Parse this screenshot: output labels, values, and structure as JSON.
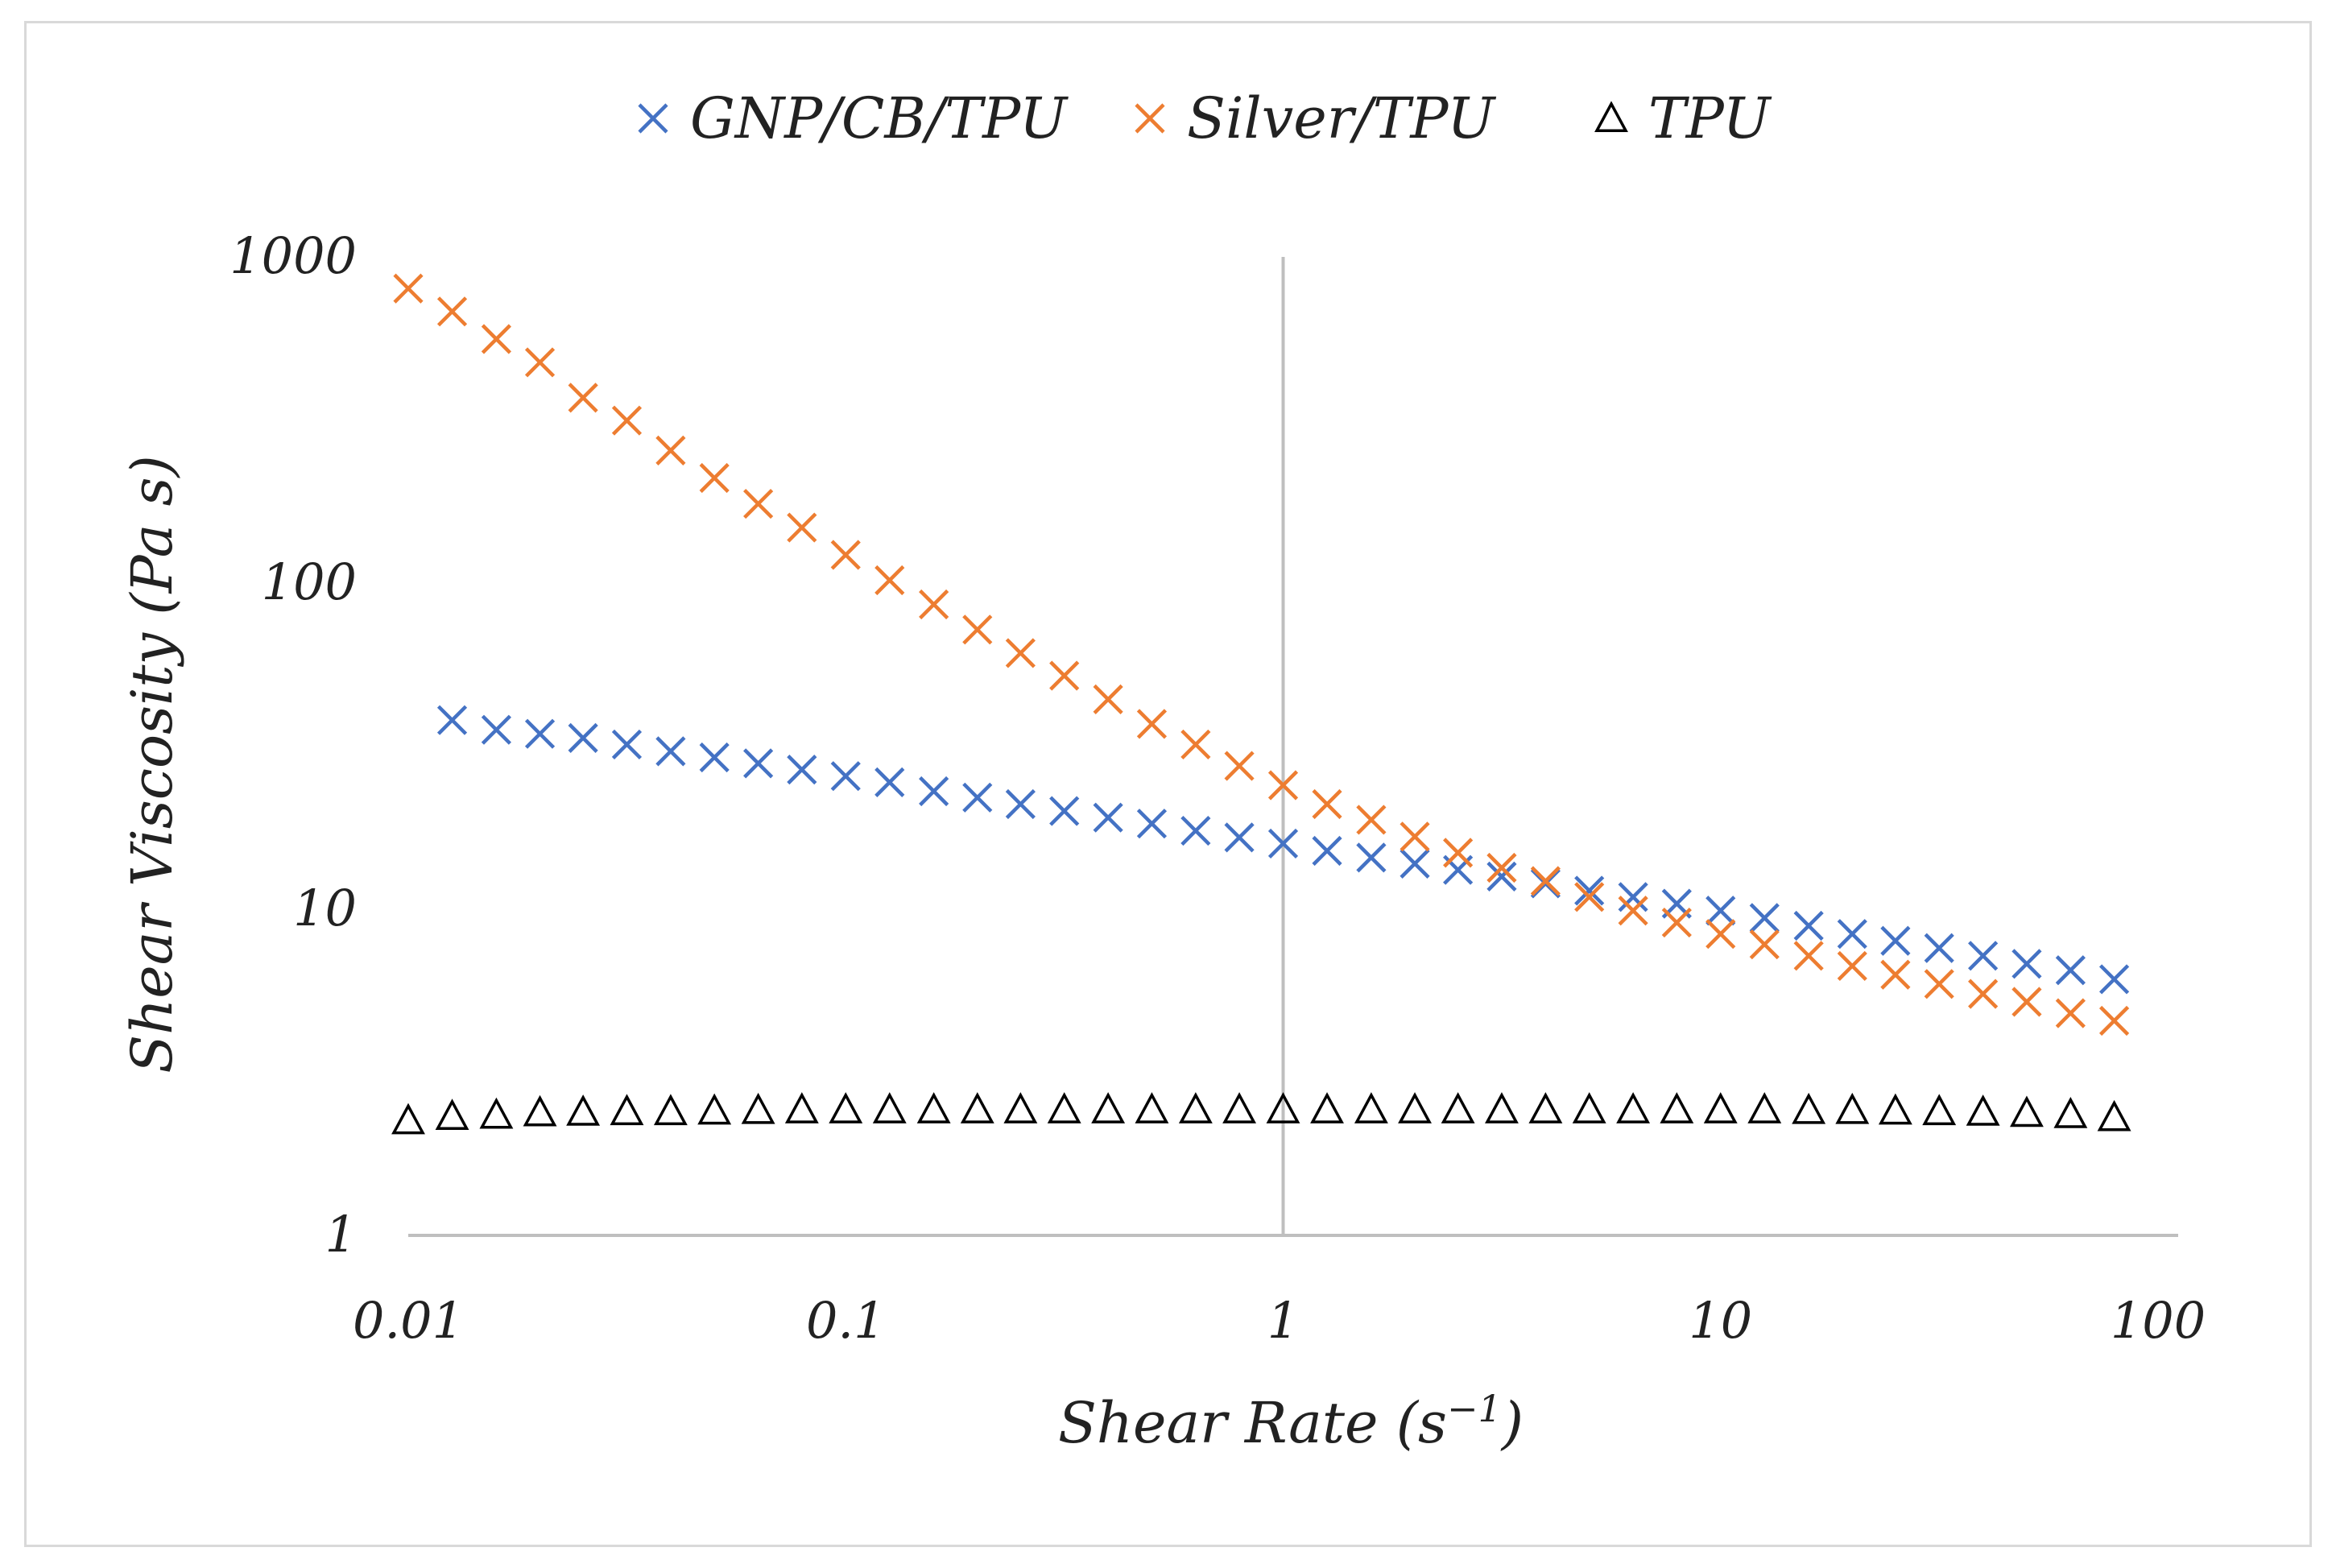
{
  "chart_data": {
    "type": "scatter",
    "title": "",
    "xlabel": "Shear Rate (s",
    "xlabel_sup": "−1",
    "xlabel_close": ")",
    "ylabel": "Shear Viscosity (Pa s)",
    "xscale": "log",
    "yscale": "log",
    "xlim": [
      0.01,
      100
    ],
    "ylim": [
      1,
      1000
    ],
    "x_tick_labels": [
      "0.01",
      "0.1",
      "1",
      "10",
      "100"
    ],
    "y_tick_labels": [
      "1",
      "10",
      "100",
      "1000"
    ],
    "legend_position": "top",
    "grid": false,
    "series": [
      {
        "name": "GNP/CB/TPU",
        "marker": "x",
        "color": "#4472C4",
        "x": [
          0.0126,
          0.0159,
          0.02,
          0.0251,
          0.0316,
          0.0398,
          0.0501,
          0.0631,
          0.0794,
          0.1,
          0.126,
          0.159,
          0.2,
          0.251,
          0.316,
          0.398,
          0.501,
          0.631,
          0.794,
          1.0,
          1.26,
          1.59,
          2.0,
          2.51,
          3.16,
          3.98,
          5.01,
          6.31,
          7.94,
          10.0,
          12.6,
          15.9,
          20.0,
          25.1,
          31.6,
          39.8,
          50.1,
          63.1,
          79.4
        ],
        "y": [
          38,
          35.5,
          34.5,
          33.5,
          32,
          30.5,
          29.2,
          28,
          26.8,
          25.6,
          24.5,
          23,
          22,
          21,
          20,
          19.1,
          18.3,
          17.4,
          16.6,
          15.9,
          15.1,
          14.4,
          13.8,
          13.2,
          12.6,
          12.0,
          11.4,
          10.9,
          10.4,
          9.9,
          9.4,
          8.9,
          8.4,
          8.0,
          7.6,
          7.2,
          6.8,
          6.5,
          6.1
        ]
      },
      {
        "name": "Silver/TPU",
        "marker": "x",
        "color": "#ED7D31",
        "x": [
          0.01,
          0.0126,
          0.0159,
          0.02,
          0.0251,
          0.0316,
          0.0398,
          0.0501,
          0.0631,
          0.0794,
          0.1,
          0.126,
          0.159,
          0.2,
          0.251,
          0.316,
          0.398,
          0.501,
          0.631,
          0.794,
          1.0,
          1.26,
          1.59,
          2.0,
          2.51,
          3.16,
          3.98,
          5.01,
          6.31,
          7.94,
          10.0,
          12.6,
          15.9,
          20.0,
          25.1,
          31.6,
          39.8,
          50.1,
          63.1,
          79.4
        ],
        "y": [
          800,
          680,
          560,
          475,
          370,
          315,
          255,
          210,
          175,
          148,
          122,
          102,
          86,
          72,
          61,
          52,
          44,
          37,
          32,
          27.5,
          24,
          21,
          18.8,
          16.7,
          14.9,
          13.4,
          12.2,
          10.9,
          9.9,
          9.1,
          8.4,
          7.8,
          7.2,
          6.7,
          6.3,
          5.9,
          5.5,
          5.2,
          4.8,
          4.55
        ]
      },
      {
        "name": "TPU",
        "marker": "triangle",
        "color": "#000000",
        "x": [
          0.01,
          0.0126,
          0.0159,
          0.02,
          0.0251,
          0.0316,
          0.0398,
          0.0501,
          0.0631,
          0.0794,
          0.1,
          0.126,
          0.159,
          0.2,
          0.251,
          0.316,
          0.398,
          0.501,
          0.631,
          0.794,
          1.0,
          1.26,
          1.59,
          2.0,
          2.51,
          3.16,
          3.98,
          5.01,
          6.31,
          7.94,
          10.0,
          12.6,
          15.9,
          20.0,
          25.1,
          31.6,
          39.8,
          50.1,
          63.1,
          79.4
        ],
        "y": [
          2.25,
          2.32,
          2.34,
          2.38,
          2.39,
          2.4,
          2.4,
          2.41,
          2.42,
          2.43,
          2.43,
          2.43,
          2.43,
          2.43,
          2.43,
          2.43,
          2.43,
          2.43,
          2.43,
          2.43,
          2.43,
          2.43,
          2.43,
          2.43,
          2.43,
          2.43,
          2.43,
          2.43,
          2.43,
          2.43,
          2.43,
          2.43,
          2.42,
          2.42,
          2.41,
          2.4,
          2.39,
          2.37,
          2.35,
          2.3
        ]
      }
    ]
  }
}
